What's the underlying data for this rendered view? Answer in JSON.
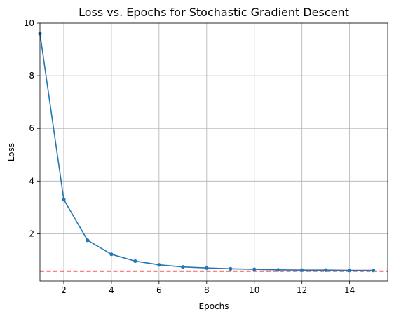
{
  "chart_data": {
    "type": "line",
    "title": "Loss vs. Epochs for Stochastic Gradient Descent",
    "xlabel": "Epochs",
    "ylabel": "Loss",
    "xlim": [
      1,
      15.6
    ],
    "ylim": [
      0.2,
      10.0
    ],
    "xticks": [
      2,
      4,
      6,
      8,
      10,
      12,
      14
    ],
    "yticks": [
      2,
      4,
      6,
      8,
      10
    ],
    "grid": true,
    "series": [
      {
        "color": "#1f77b4",
        "marker": "circle",
        "x": [
          1,
          2,
          3,
          4,
          5,
          6,
          7,
          8,
          9,
          10,
          11,
          12,
          13,
          14,
          15
        ],
        "y": [
          9.6,
          3.3,
          1.75,
          1.22,
          0.96,
          0.82,
          0.74,
          0.7,
          0.67,
          0.65,
          0.63,
          0.62,
          0.62,
          0.61,
          0.61
        ]
      }
    ],
    "reference_line": {
      "y": 0.58,
      "color": "#ff0000",
      "style": "dashed"
    }
  }
}
